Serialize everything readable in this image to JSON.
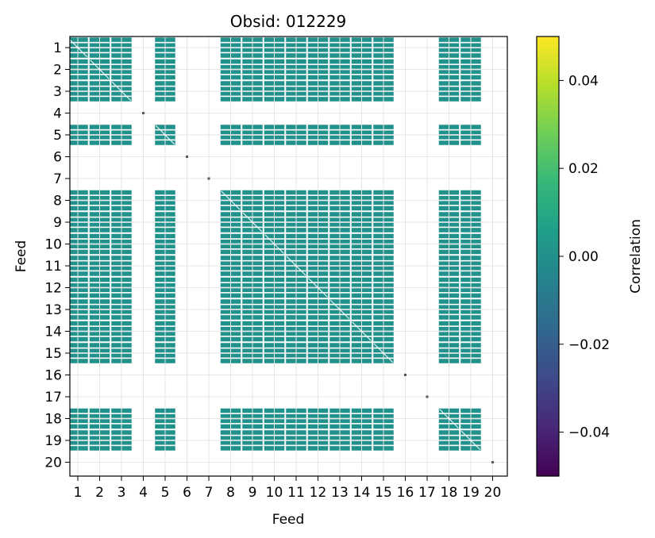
{
  "chart_data": {
    "type": "heatmap",
    "title": "Obsid: 012229",
    "xlabel": "Feed",
    "ylabel": "Feed",
    "x_ticks": [
      "1",
      "2",
      "3",
      "4",
      "5",
      "6",
      "7",
      "8",
      "9",
      "10",
      "11",
      "12",
      "13",
      "14",
      "15",
      "16",
      "17",
      "18",
      "19",
      "20"
    ],
    "y_ticks": [
      "1",
      "2",
      "3",
      "4",
      "5",
      "6",
      "7",
      "8",
      "9",
      "10",
      "11",
      "12",
      "13",
      "14",
      "15",
      "16",
      "17",
      "18",
      "19",
      "20"
    ],
    "active_feeds": [
      1,
      2,
      3,
      5,
      8,
      9,
      10,
      11,
      12,
      13,
      14,
      15,
      18,
      19
    ],
    "inactive_feeds": [
      4,
      6,
      7,
      16,
      17,
      20
    ],
    "cell_value": 0.0,
    "cell_color": "#21918c",
    "grid": true,
    "colorbar": {
      "label": "Correlation",
      "vmin": -0.05,
      "vmax": 0.05,
      "ticks": [
        -0.04,
        -0.02,
        0.0,
        0.02,
        0.04
      ],
      "tick_labels": [
        "−0.04",
        "−0.02",
        "0.00",
        "0.02",
        "0.04"
      ],
      "colormap": "viridis",
      "colormap_stops": [
        "#440154",
        "#482878",
        "#3e4989",
        "#31688e",
        "#26828e",
        "#1f9e89",
        "#35b779",
        "#6ece58",
        "#b5de2b",
        "#fde725"
      ]
    }
  }
}
